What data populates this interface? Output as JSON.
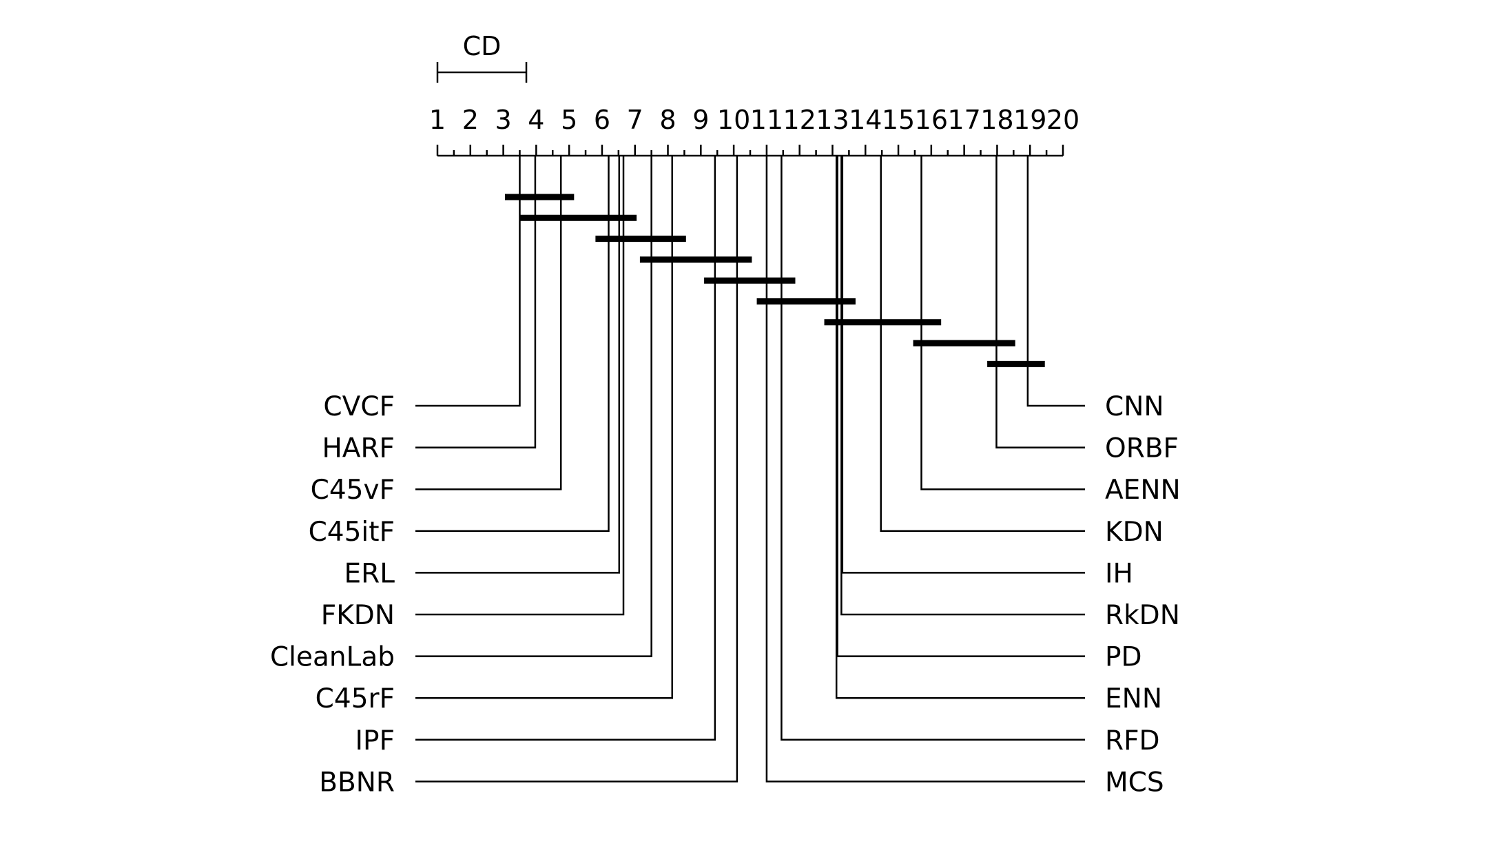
{
  "chart_data": {
    "type": "critical-difference-diagram",
    "axis": {
      "min": 1,
      "max": 20,
      "labels": [
        "1",
        "2",
        "3",
        "4",
        "5",
        "6",
        "7",
        "8",
        "9",
        "10",
        "11",
        "12",
        "13",
        "14",
        "15",
        "16",
        "17",
        "18",
        "19",
        "20"
      ]
    },
    "cd": {
      "label": "CD",
      "value": 2.7
    },
    "left_methods": [
      {
        "name": "CVCF",
        "rank": 3.5
      },
      {
        "name": "HARF",
        "rank": 3.97
      },
      {
        "name": "C45vF",
        "rank": 4.75
      },
      {
        "name": "C45itF",
        "rank": 6.2
      },
      {
        "name": "ERL",
        "rank": 6.52
      },
      {
        "name": "FKDN",
        "rank": 6.65
      },
      {
        "name": "CleanLab",
        "rank": 7.5
      },
      {
        "name": "C45rF",
        "rank": 8.13
      },
      {
        "name": "IPF",
        "rank": 9.43
      },
      {
        "name": "BBNR",
        "rank": 10.1
      }
    ],
    "right_methods": [
      {
        "name": "CNN",
        "rank": 18.93
      },
      {
        "name": "ORBF",
        "rank": 17.98
      },
      {
        "name": "AENN",
        "rank": 15.7
      },
      {
        "name": "KDN",
        "rank": 14.47
      },
      {
        "name": "IH",
        "rank": 13.3
      },
      {
        "name": "RkDN",
        "rank": 13.27
      },
      {
        "name": "PD",
        "rank": 13.15
      },
      {
        "name": "ENN",
        "rank": 13.12
      },
      {
        "name": "RFD",
        "rank": 11.45
      },
      {
        "name": "MCS",
        "rank": 11.0
      }
    ],
    "cliques": [
      [
        3.05,
        5.15
      ],
      [
        3.5,
        7.05
      ],
      [
        5.8,
        8.55
      ],
      [
        7.15,
        10.55
      ],
      [
        9.1,
        11.87
      ],
      [
        10.7,
        13.7
      ],
      [
        12.75,
        16.3
      ],
      [
        15.45,
        18.55
      ],
      [
        17.7,
        19.45
      ]
    ]
  }
}
